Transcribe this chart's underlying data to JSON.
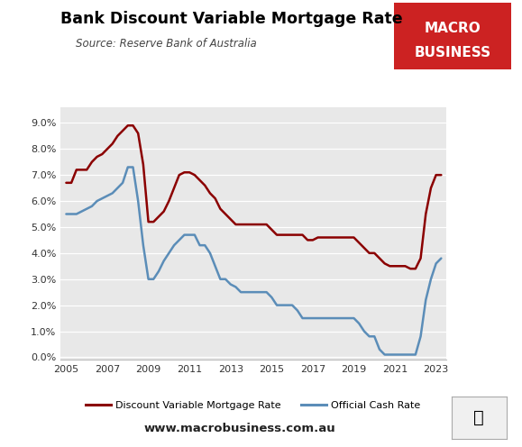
{
  "title": "Bank Discount Variable Mortgage Rate",
  "source": "Source: Reserve Bank of Australia",
  "website": "www.macrobusiness.com.au",
  "background_color": "#e8e8e8",
  "fig_background": "#ffffff",
  "mortgage_color": "#8b0000",
  "cash_color": "#5b8db8",
  "mortgage_label": "Discount Variable Mortgage Rate",
  "cash_label": "Official Cash Rate",
  "xlim": [
    2004.7,
    2023.5
  ],
  "ylim": [
    -0.001,
    0.096
  ],
  "yticks": [
    0.0,
    0.01,
    0.02,
    0.03,
    0.04,
    0.05,
    0.06,
    0.07,
    0.08,
    0.09
  ],
  "xticks": [
    2005,
    2007,
    2009,
    2011,
    2013,
    2015,
    2017,
    2019,
    2021,
    2023
  ],
  "mortgage_rate": [
    [
      2005.0,
      0.067
    ],
    [
      2005.25,
      0.067
    ],
    [
      2005.5,
      0.072
    ],
    [
      2005.75,
      0.072
    ],
    [
      2006.0,
      0.072
    ],
    [
      2006.25,
      0.075
    ],
    [
      2006.5,
      0.077
    ],
    [
      2006.75,
      0.078
    ],
    [
      2007.0,
      0.08
    ],
    [
      2007.25,
      0.082
    ],
    [
      2007.5,
      0.085
    ],
    [
      2007.75,
      0.087
    ],
    [
      2008.0,
      0.089
    ],
    [
      2008.25,
      0.089
    ],
    [
      2008.5,
      0.086
    ],
    [
      2008.75,
      0.074
    ],
    [
      2009.0,
      0.052
    ],
    [
      2009.25,
      0.052
    ],
    [
      2009.5,
      0.054
    ],
    [
      2009.75,
      0.056
    ],
    [
      2010.0,
      0.06
    ],
    [
      2010.25,
      0.065
    ],
    [
      2010.5,
      0.07
    ],
    [
      2010.75,
      0.071
    ],
    [
      2011.0,
      0.071
    ],
    [
      2011.25,
      0.07
    ],
    [
      2011.5,
      0.068
    ],
    [
      2011.75,
      0.066
    ],
    [
      2012.0,
      0.063
    ],
    [
      2012.25,
      0.061
    ],
    [
      2012.5,
      0.057
    ],
    [
      2012.75,
      0.055
    ],
    [
      2013.0,
      0.053
    ],
    [
      2013.25,
      0.051
    ],
    [
      2013.5,
      0.051
    ],
    [
      2013.75,
      0.051
    ],
    [
      2014.0,
      0.051
    ],
    [
      2014.25,
      0.051
    ],
    [
      2014.5,
      0.051
    ],
    [
      2014.75,
      0.051
    ],
    [
      2015.0,
      0.049
    ],
    [
      2015.25,
      0.047
    ],
    [
      2015.5,
      0.047
    ],
    [
      2015.75,
      0.047
    ],
    [
      2016.0,
      0.047
    ],
    [
      2016.25,
      0.047
    ],
    [
      2016.5,
      0.047
    ],
    [
      2016.75,
      0.045
    ],
    [
      2017.0,
      0.045
    ],
    [
      2017.25,
      0.046
    ],
    [
      2017.5,
      0.046
    ],
    [
      2017.75,
      0.046
    ],
    [
      2018.0,
      0.046
    ],
    [
      2018.25,
      0.046
    ],
    [
      2018.5,
      0.046
    ],
    [
      2018.75,
      0.046
    ],
    [
      2019.0,
      0.046
    ],
    [
      2019.25,
      0.044
    ],
    [
      2019.5,
      0.042
    ],
    [
      2019.75,
      0.04
    ],
    [
      2020.0,
      0.04
    ],
    [
      2020.25,
      0.038
    ],
    [
      2020.5,
      0.036
    ],
    [
      2020.75,
      0.035
    ],
    [
      2021.0,
      0.035
    ],
    [
      2021.25,
      0.035
    ],
    [
      2021.5,
      0.035
    ],
    [
      2021.75,
      0.034
    ],
    [
      2022.0,
      0.034
    ],
    [
      2022.25,
      0.038
    ],
    [
      2022.5,
      0.055
    ],
    [
      2022.75,
      0.065
    ],
    [
      2023.0,
      0.07
    ],
    [
      2023.25,
      0.07
    ]
  ],
  "cash_rate": [
    [
      2005.0,
      0.055
    ],
    [
      2005.25,
      0.055
    ],
    [
      2005.5,
      0.055
    ],
    [
      2005.75,
      0.056
    ],
    [
      2006.0,
      0.057
    ],
    [
      2006.25,
      0.058
    ],
    [
      2006.5,
      0.06
    ],
    [
      2006.75,
      0.061
    ],
    [
      2007.0,
      0.062
    ],
    [
      2007.25,
      0.063
    ],
    [
      2007.5,
      0.065
    ],
    [
      2007.75,
      0.067
    ],
    [
      2008.0,
      0.073
    ],
    [
      2008.25,
      0.073
    ],
    [
      2008.5,
      0.06
    ],
    [
      2008.75,
      0.043
    ],
    [
      2009.0,
      0.03
    ],
    [
      2009.25,
      0.03
    ],
    [
      2009.5,
      0.033
    ],
    [
      2009.75,
      0.037
    ],
    [
      2010.0,
      0.04
    ],
    [
      2010.25,
      0.043
    ],
    [
      2010.5,
      0.045
    ],
    [
      2010.75,
      0.047
    ],
    [
      2011.0,
      0.047
    ],
    [
      2011.25,
      0.047
    ],
    [
      2011.5,
      0.043
    ],
    [
      2011.75,
      0.043
    ],
    [
      2012.0,
      0.04
    ],
    [
      2012.25,
      0.035
    ],
    [
      2012.5,
      0.03
    ],
    [
      2012.75,
      0.03
    ],
    [
      2013.0,
      0.028
    ],
    [
      2013.25,
      0.027
    ],
    [
      2013.5,
      0.025
    ],
    [
      2013.75,
      0.025
    ],
    [
      2014.0,
      0.025
    ],
    [
      2014.25,
      0.025
    ],
    [
      2014.5,
      0.025
    ],
    [
      2014.75,
      0.025
    ],
    [
      2015.0,
      0.023
    ],
    [
      2015.25,
      0.02
    ],
    [
      2015.5,
      0.02
    ],
    [
      2015.75,
      0.02
    ],
    [
      2016.0,
      0.02
    ],
    [
      2016.25,
      0.018
    ],
    [
      2016.5,
      0.015
    ],
    [
      2016.75,
      0.015
    ],
    [
      2017.0,
      0.015
    ],
    [
      2017.25,
      0.015
    ],
    [
      2017.5,
      0.015
    ],
    [
      2017.75,
      0.015
    ],
    [
      2018.0,
      0.015
    ],
    [
      2018.25,
      0.015
    ],
    [
      2018.5,
      0.015
    ],
    [
      2018.75,
      0.015
    ],
    [
      2019.0,
      0.015
    ],
    [
      2019.25,
      0.013
    ],
    [
      2019.5,
      0.01
    ],
    [
      2019.75,
      0.008
    ],
    [
      2020.0,
      0.008
    ],
    [
      2020.25,
      0.003
    ],
    [
      2020.5,
      0.001
    ],
    [
      2020.75,
      0.001
    ],
    [
      2021.0,
      0.001
    ],
    [
      2021.25,
      0.001
    ],
    [
      2021.5,
      0.001
    ],
    [
      2021.75,
      0.001
    ],
    [
      2022.0,
      0.001
    ],
    [
      2022.25,
      0.008
    ],
    [
      2022.5,
      0.022
    ],
    [
      2022.75,
      0.03
    ],
    [
      2023.0,
      0.036
    ],
    [
      2023.25,
      0.038
    ]
  ],
  "logo_text1": "MACRO",
  "logo_text2": "BUSINESS",
  "logo_color": "#cc2222",
  "logo_fontsize": 11
}
